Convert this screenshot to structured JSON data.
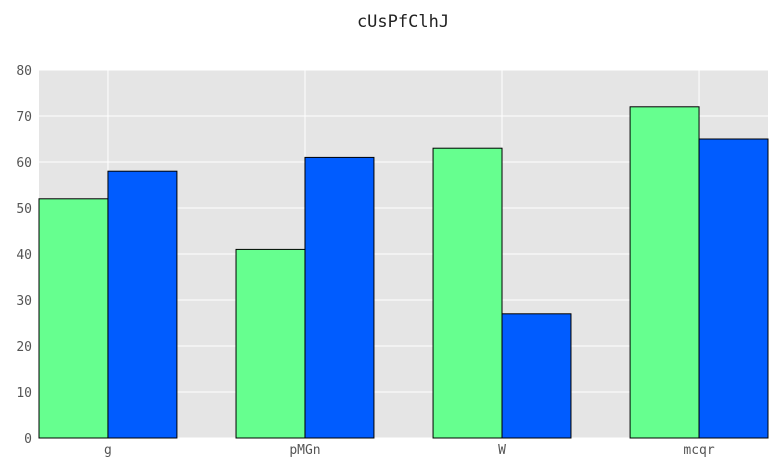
{
  "chart_data": {
    "type": "bar",
    "title": "cUsPfClhJ",
    "xlabel": "",
    "ylabel": "",
    "categories": [
      "g",
      "pMGn",
      "W",
      "mcqr"
    ],
    "series": [
      {
        "values": [
          52,
          41,
          63,
          72
        ],
        "color": "#66ff8f"
      },
      {
        "values": [
          58,
          61,
          27,
          65
        ],
        "color": "#005cff"
      }
    ],
    "ylim": [
      0,
      80
    ],
    "yticks": [
      0,
      10,
      20,
      30,
      40,
      50,
      60,
      70,
      80
    ],
    "grid": true,
    "background": "#e5e5e5"
  }
}
